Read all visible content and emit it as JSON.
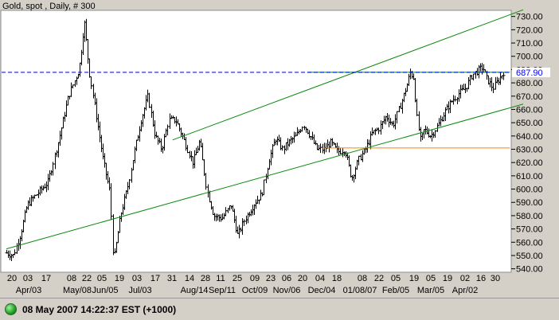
{
  "window": {
    "title": "Gold, spot , Daily, # 300"
  },
  "status_bar": {
    "text": "08 May 2007 14:22:37  EST (+1000)",
    "indicator_color": "#22aa22"
  },
  "chart_data": {
    "type": "bar",
    "subtype": "ohlc",
    "title": "Gold, spot , Daily, # 300",
    "ylim": [
      538,
      734
    ],
    "y_ticks": [
      540,
      550,
      560,
      570,
      580,
      590,
      600,
      610,
      620,
      630,
      640,
      650,
      660,
      670,
      680,
      690,
      700,
      710,
      720,
      730
    ],
    "y_tick_labels": [
      "540.00",
      "550.00",
      "560.00",
      "570.00",
      "580.00",
      "590.00",
      "600.00",
      "610.00",
      "620.00",
      "630.00",
      "640.00",
      "650.00",
      "660.00",
      "670.00",
      "680.00",
      "690.00",
      "700.00",
      "710.00",
      "720.00",
      "730.00"
    ],
    "x_day_labels": [
      "20",
      "03",
      "17",
      "08",
      "22",
      "05",
      "19",
      "03",
      "17",
      "31",
      "14",
      "28",
      "11",
      "25",
      "09",
      "23",
      "06",
      "20",
      "04",
      "18",
      "08",
      "22",
      "05",
      "19",
      "05",
      "19",
      "02",
      "16",
      "30"
    ],
    "x_month_labels": [
      "Apr/03",
      "May/08",
      "Jun/05",
      "Jul/03",
      "Aug/14",
      "Sep/11",
      "Oct/09",
      "Nov/06",
      "Dec/04",
      "01/08/07",
      "Feb/05",
      "Mar/05",
      "Apr/02"
    ],
    "last_price": 687.9,
    "last_price_label": "687.90",
    "grid": false,
    "colors": {
      "bars": "#000000",
      "trend": "#0a8a0a",
      "support": "#ff8000",
      "price_line": "#0000cc",
      "price_label": "#0000ff",
      "background": "#ffffff"
    },
    "trend_channel": [
      {
        "name": "upper",
        "points": [
          [
            96,
            637
          ],
          [
            300,
            735
          ]
        ]
      },
      {
        "name": "lower",
        "points": [
          [
            0,
            555
          ],
          [
            300,
            664
          ]
        ]
      },
      {
        "name": "resistance",
        "points": [
          [
            174,
            688
          ],
          [
            292,
            688
          ]
        ]
      }
    ],
    "support_line": {
      "price": 631,
      "x_range": [
        183,
        292
      ]
    },
    "ohlc_anchors": [
      [
        0,
        552
      ],
      [
        4,
        550
      ],
      [
        8,
        566
      ],
      [
        12,
        588
      ],
      [
        18,
        597
      ],
      [
        24,
        605
      ],
      [
        30,
        636
      ],
      [
        36,
        670
      ],
      [
        42,
        690
      ],
      [
        44,
        712
      ],
      [
        45,
        728
      ],
      [
        48,
        688
      ],
      [
        52,
        655
      ],
      [
        56,
        622
      ],
      [
        60,
        598
      ],
      [
        62,
        545
      ],
      [
        66,
        580
      ],
      [
        70,
        600
      ],
      [
        74,
        628
      ],
      [
        78,
        652
      ],
      [
        82,
        670
      ],
      [
        86,
        640
      ],
      [
        90,
        630
      ],
      [
        94,
        652
      ],
      [
        98,
        652
      ],
      [
        102,
        640
      ],
      [
        108,
        620
      ],
      [
        112,
        636
      ],
      [
        116,
        600
      ],
      [
        120,
        580
      ],
      [
        125,
        578
      ],
      [
        130,
        588
      ],
      [
        134,
        565
      ],
      [
        138,
        577
      ],
      [
        144,
        590
      ],
      [
        148,
        596
      ],
      [
        152,
        622
      ],
      [
        156,
        638
      ],
      [
        160,
        630
      ],
      [
        164,
        636
      ],
      [
        168,
        640
      ],
      [
        172,
        649
      ],
      [
        176,
        640
      ],
      [
        180,
        630
      ],
      [
        184,
        630
      ],
      [
        188,
        635
      ],
      [
        192,
        628
      ],
      [
        196,
        630
      ],
      [
        200,
        608
      ],
      [
        204,
        622
      ],
      [
        208,
        630
      ],
      [
        212,
        642
      ],
      [
        216,
        646
      ],
      [
        220,
        655
      ],
      [
        224,
        648
      ],
      [
        228,
        662
      ],
      [
        232,
        678
      ],
      [
        234,
        688
      ],
      [
        236,
        684
      ],
      [
        238,
        652
      ],
      [
        240,
        636
      ],
      [
        242,
        645
      ],
      [
        246,
        640
      ],
      [
        250,
        648
      ],
      [
        254,
        658
      ],
      [
        258,
        666
      ],
      [
        262,
        672
      ],
      [
        266,
        676
      ],
      [
        270,
        686
      ],
      [
        274,
        690
      ],
      [
        276,
        692
      ],
      [
        278,
        684
      ],
      [
        282,
        676
      ],
      [
        286,
        684
      ],
      [
        288,
        688
      ]
    ]
  }
}
